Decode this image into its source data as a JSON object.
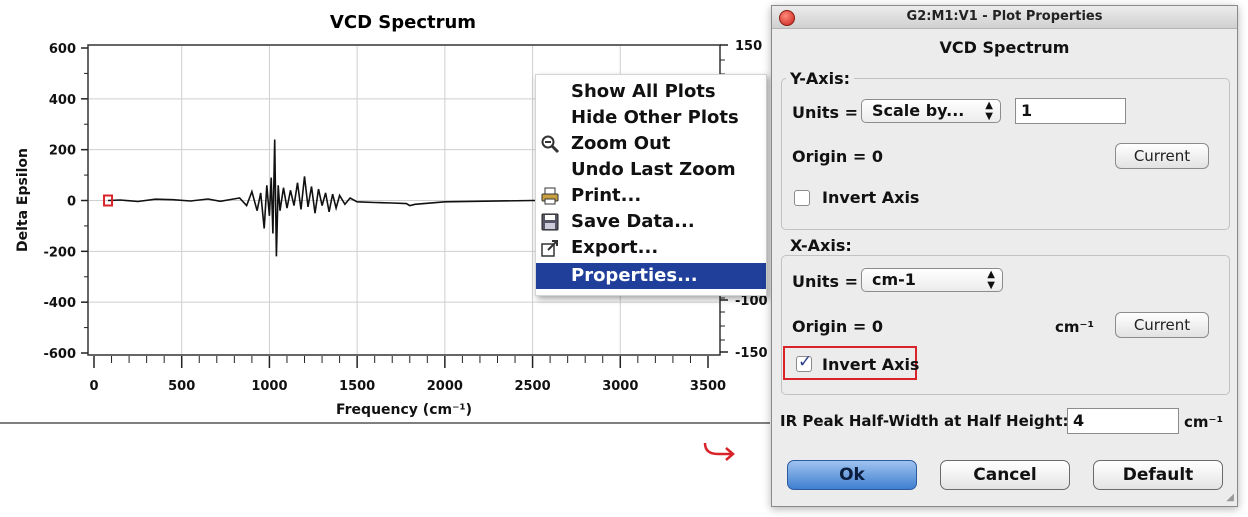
{
  "chart": {
    "title": "VCD Spectrum",
    "ylabel": "Delta Epsilon",
    "xlabel": "Frequency (cm⁻¹)",
    "left_ticks": [
      "600",
      "400",
      "200",
      "0",
      "-200",
      "-400",
      "-600"
    ],
    "bottom_ticks": [
      "0",
      "500",
      "1000",
      "1500",
      "2000",
      "2500",
      "3000",
      "3500"
    ],
    "right_ticks": [
      "150",
      "-100",
      "-150"
    ]
  },
  "chart_data": {
    "type": "line",
    "title": "VCD Spectrum",
    "xlabel": "Frequency (cm⁻¹)",
    "ylabel": "Delta Epsilon",
    "xlim": [
      0,
      3500
    ],
    "ylim": [
      -600,
      600
    ],
    "grid": true,
    "series": [
      {
        "color": "#111111",
        "x": [
          80,
          150,
          250,
          350,
          450,
          550,
          650,
          720,
          780,
          830,
          870,
          900,
          930,
          950,
          970,
          985,
          1000,
          1010,
          1020,
          1030,
          1040,
          1050,
          1060,
          1080,
          1100,
          1120,
          1140,
          1160,
          1180,
          1200,
          1220,
          1240,
          1260,
          1280,
          1300,
          1320,
          1340,
          1360,
          1380,
          1400,
          1430,
          1460,
          1500,
          1600,
          1700,
          1780,
          1800,
          1830,
          2000,
          2500,
          3000,
          3500
        ],
        "y": [
          0,
          2,
          -4,
          5,
          3,
          -2,
          6,
          -3,
          4,
          10,
          -20,
          35,
          -40,
          30,
          -110,
          60,
          -60,
          90,
          -130,
          240,
          -220,
          60,
          -40,
          50,
          -30,
          40,
          -20,
          70,
          -35,
          95,
          -25,
          55,
          -50,
          45,
          -20,
          30,
          -45,
          25,
          -30,
          20,
          -15,
          10,
          -5,
          -8,
          -10,
          -12,
          -20,
          -15,
          -5,
          0,
          0,
          0
        ]
      }
    ],
    "x_ticks": [
      0,
      500,
      1000,
      1500,
      2000,
      2500,
      3000,
      3500
    ],
    "y_ticks": [
      600,
      400,
      200,
      0,
      -200,
      -400,
      -600
    ]
  },
  "context_menu": {
    "items": [
      {
        "label": "Show All Plots",
        "icon": ""
      },
      {
        "label": "Hide Other Plots",
        "icon": ""
      },
      {
        "label": "Zoom Out",
        "icon": "zoom-out-icon"
      },
      {
        "label": "Undo Last Zoom",
        "icon": ""
      },
      {
        "label": "Print...",
        "icon": "print-icon"
      },
      {
        "label": "Save Data...",
        "icon": "save-icon"
      },
      {
        "label": "Export...",
        "icon": "export-icon"
      },
      {
        "label": "Properties...",
        "icon": "",
        "selected": true
      }
    ]
  },
  "dialog": {
    "title": "G2:M1:V1 - Plot Properties",
    "heading": "VCD Spectrum",
    "y_axis": {
      "group_label": "Y-Axis:",
      "units_label": "Units =",
      "units_value": "Scale by...",
      "scale_value": "1",
      "origin_label": "Origin = 0",
      "current_button": "Current",
      "invert_label": "Invert Axis",
      "invert_checked": false
    },
    "x_axis": {
      "group_label": "X-Axis:",
      "units_label": "Units =",
      "units_value": "cm-1",
      "origin_label": "Origin = 0",
      "origin_unit": "cm⁻¹",
      "current_button": "Current",
      "invert_label": "Invert Axis",
      "invert_checked": true
    },
    "ir_peak_label": "IR Peak Half-Width at Half Height:",
    "ir_peak_value": "4",
    "ir_peak_unit": "cm⁻¹",
    "ok_button": "Ok",
    "cancel_button": "Cancel",
    "default_button": "Default"
  },
  "colors": {
    "highlight": "#d8232a",
    "menu_selected": "#1f3f9a",
    "marker": "#d8232a"
  }
}
